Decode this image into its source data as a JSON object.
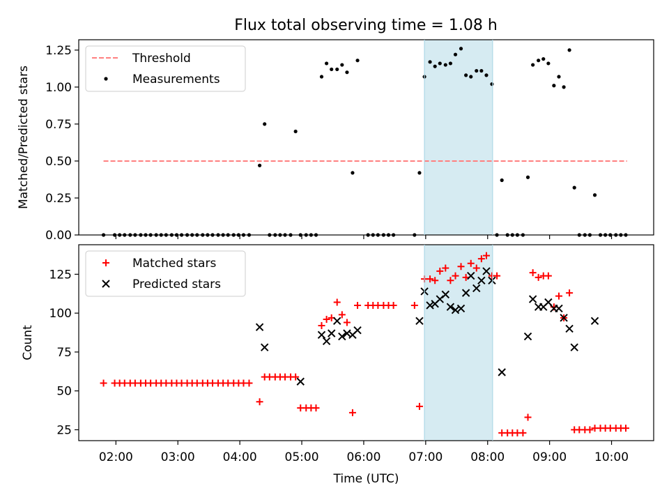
{
  "title": "Flux total observing time = 1.08 h",
  "colors": {
    "threshold": "#ff7f7f",
    "measurements": "#000000",
    "matched": "#ff0000",
    "predicted": "#000000",
    "highlight": "#add8e6"
  },
  "chart_data": [
    {
      "type": "scatter",
      "ylabel": "Matched/Predicted stars",
      "ylim": [
        0,
        1.32
      ],
      "yticks": [
        0.0,
        0.25,
        0.5,
        0.75,
        1.0,
        1.25
      ],
      "ytick_labels": [
        "0.00",
        "0.25",
        "0.50",
        "0.75",
        "1.00",
        "1.25"
      ],
      "xlim": [
        1.4,
        10.68
      ],
      "grid": false,
      "legend": {
        "position": "top-left",
        "entries": [
          "Threshold",
          "Measurements"
        ]
      },
      "highlight_span": {
        "x0": 6.98,
        "x1": 8.08
      },
      "series": [
        {
          "name": "Threshold",
          "style": "dashed-line",
          "x": [
            1.8,
            10.25
          ],
          "y": [
            0.5,
            0.5
          ]
        },
        {
          "name": "Measurements",
          "style": "dot",
          "x": [
            1.8,
            1.98,
            2.06,
            2.14,
            2.23,
            2.31,
            2.4,
            2.48,
            2.56,
            2.65,
            2.73,
            2.81,
            2.9,
            2.98,
            3.06,
            3.15,
            3.23,
            3.31,
            3.4,
            3.48,
            3.56,
            3.65,
            3.73,
            3.81,
            3.9,
            3.98,
            4.06,
            4.15,
            4.32,
            4.4,
            4.48,
            4.57,
            4.65,
            4.73,
            4.82,
            4.9,
            4.98,
            5.07,
            5.15,
            5.23,
            5.32,
            5.4,
            5.48,
            5.57,
            5.65,
            5.73,
            5.82,
            5.9,
            6.07,
            6.15,
            6.23,
            6.32,
            6.4,
            6.48,
            6.82,
            6.9,
            6.98,
            7.07,
            7.15,
            7.23,
            7.32,
            7.4,
            7.48,
            7.57,
            7.65,
            7.73,
            7.82,
            7.9,
            7.98,
            8.07,
            8.15,
            8.23,
            8.32,
            8.4,
            8.48,
            8.57,
            8.65,
            8.73,
            8.82,
            8.9,
            8.98,
            9.07,
            9.15,
            9.23,
            9.32,
            9.4,
            9.48,
            9.57,
            9.65,
            9.73,
            9.82,
            9.9,
            9.98,
            10.07,
            10.15,
            10.23
          ],
          "y": [
            0,
            0,
            0,
            0,
            0,
            0,
            0,
            0,
            0,
            0,
            0,
            0,
            0,
            0,
            0,
            0,
            0,
            0,
            0,
            0,
            0,
            0,
            0,
            0,
            0,
            0,
            0,
            0,
            0.47,
            0.75,
            0,
            0,
            0,
            0,
            0,
            0.7,
            0,
            0,
            0,
            0,
            1.07,
            1.16,
            1.12,
            1.12,
            1.15,
            1.1,
            0.42,
            1.18,
            0,
            0,
            0,
            0,
            0,
            0,
            0,
            0.42,
            1.07,
            1.17,
            1.14,
            1.16,
            1.15,
            1.16,
            1.22,
            1.26,
            1.08,
            1.07,
            1.11,
            1.11,
            1.08,
            1.02,
            0,
            0.37,
            0,
            0,
            0,
            0,
            0.39,
            1.15,
            1.18,
            1.19,
            1.16,
            1.01,
            1.07,
            1.0,
            1.25,
            0.32,
            0,
            0,
            0,
            0.27,
            0,
            0,
            0,
            0,
            0,
            0
          ]
        }
      ]
    },
    {
      "type": "scatter",
      "xlabel": "Time (UTC)",
      "ylabel": "Count",
      "ylim": [
        18,
        144
      ],
      "yticks": [
        25,
        50,
        75,
        100,
        125
      ],
      "ytick_labels": [
        "25",
        "50",
        "75",
        "100",
        "125"
      ],
      "xlim": [
        1.4,
        10.68
      ],
      "xticks": [
        2,
        3,
        4,
        5,
        6,
        7,
        8,
        9,
        10
      ],
      "xtick_labels": [
        "02:00",
        "03:00",
        "04:00",
        "05:00",
        "06:00",
        "07:00",
        "08:00",
        "09:00",
        "10:00"
      ],
      "grid": false,
      "legend": {
        "position": "top-left",
        "entries": [
          "Matched stars",
          "Predicted stars"
        ]
      },
      "highlight_span": {
        "x0": 6.98,
        "x1": 8.08
      },
      "series": [
        {
          "name": "Matched stars",
          "marker": "plus",
          "x": [
            1.8,
            1.98,
            2.06,
            2.14,
            2.23,
            2.31,
            2.4,
            2.48,
            2.56,
            2.65,
            2.73,
            2.81,
            2.9,
            2.98,
            3.06,
            3.15,
            3.23,
            3.31,
            3.4,
            3.48,
            3.56,
            3.65,
            3.73,
            3.81,
            3.9,
            3.98,
            4.06,
            4.15,
            4.32,
            4.4,
            4.48,
            4.57,
            4.65,
            4.73,
            4.82,
            4.9,
            4.98,
            5.07,
            5.15,
            5.23,
            5.32,
            5.4,
            5.48,
            5.57,
            5.65,
            5.73,
            5.82,
            5.9,
            6.07,
            6.15,
            6.23,
            6.32,
            6.4,
            6.48,
            6.82,
            6.9,
            6.98,
            7.07,
            7.15,
            7.23,
            7.32,
            7.4,
            7.48,
            7.57,
            7.65,
            7.73,
            7.82,
            7.9,
            7.98,
            8.07,
            8.15,
            8.23,
            8.32,
            8.4,
            8.48,
            8.57,
            8.65,
            8.73,
            8.82,
            8.9,
            8.98,
            9.07,
            9.15,
            9.23,
            9.32,
            9.4,
            9.48,
            9.57,
            9.65,
            9.73,
            9.82,
            9.9,
            9.98,
            10.07,
            10.15,
            10.23
          ],
          "y": [
            55,
            55,
            55,
            55,
            55,
            55,
            55,
            55,
            55,
            55,
            55,
            55,
            55,
            55,
            55,
            55,
            55,
            55,
            55,
            55,
            55,
            55,
            55,
            55,
            55,
            55,
            55,
            55,
            43,
            59,
            59,
            59,
            59,
            59,
            59,
            59,
            39,
            39,
            39,
            39,
            92,
            96,
            97,
            107,
            99,
            94,
            36,
            105,
            105,
            105,
            105,
            105,
            105,
            105,
            105,
            40,
            122,
            122,
            121,
            127,
            129,
            121,
            124,
            130,
            123,
            132,
            129,
            135,
            137,
            124,
            124,
            23,
            23,
            23,
            23,
            23,
            33,
            126,
            123,
            124,
            124,
            104,
            111,
            97,
            113,
            25,
            25,
            25,
            25,
            26,
            26,
            26,
            26,
            26,
            26,
            26
          ]
        },
        {
          "name": "Predicted stars",
          "marker": "x",
          "x": [
            4.32,
            4.4,
            4.98,
            5.32,
            5.4,
            5.48,
            5.57,
            5.65,
            5.73,
            5.82,
            5.9,
            6.9,
            6.98,
            7.07,
            7.15,
            7.23,
            7.32,
            7.4,
            7.48,
            7.57,
            7.65,
            7.73,
            7.82,
            7.9,
            7.98,
            8.07,
            8.23,
            8.65,
            8.73,
            8.82,
            8.9,
            8.98,
            9.07,
            9.15,
            9.23,
            9.32,
            9.4,
            9.73
          ],
          "y": [
            91,
            78,
            56,
            86,
            82,
            87,
            95,
            85,
            87,
            86,
            89,
            95,
            114,
            105,
            106,
            109,
            112,
            104,
            102,
            103,
            113,
            124,
            116,
            121,
            127,
            121,
            62,
            85,
            109,
            104,
            104,
            107,
            103,
            103,
            97,
            90,
            78,
            95
          ]
        }
      ]
    }
  ]
}
